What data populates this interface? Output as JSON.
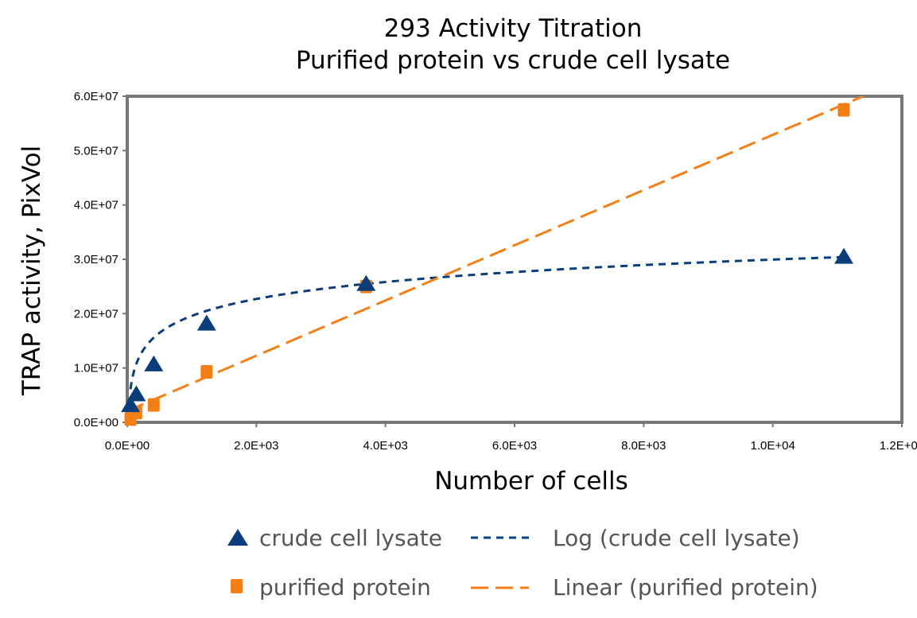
{
  "chart_data": {
    "type": "scatter",
    "title_lines": [
      "293 Activity Titration",
      "Purified protein vs crude cell lysate"
    ],
    "xlabel": "Number of cells",
    "ylabel": "TRAP activity, PixVol",
    "xlim": [
      0,
      12000
    ],
    "ylim": [
      0,
      60000000
    ],
    "x_ticks": [
      0,
      2000,
      4000,
      6000,
      8000,
      10000,
      12000
    ],
    "x_tick_labels": [
      "0.0E+00",
      "2.0E+03",
      "4.0E+03",
      "6.0E+03",
      "8.0E+03",
      "1.0E+04",
      "1.2E+04"
    ],
    "y_ticks": [
      0,
      10000000,
      20000000,
      30000000,
      40000000,
      50000000,
      60000000
    ],
    "y_tick_labels": [
      "0.0E+00",
      "1.0E+07",
      "2.0E+07",
      "3.0E+07",
      "4.0E+07",
      "5.0E+07",
      "6.0E+07"
    ],
    "grid": false,
    "legend_position": "bottom",
    "series": [
      {
        "name": "crude cell lysate",
        "marker": "triangle",
        "color": "#0a3d7a",
        "x": [
          50,
          140,
          410,
          1230,
          3700,
          11100
        ],
        "y": [
          3200000,
          5200000,
          10700000,
          18200000,
          25500000,
          30500000
        ]
      },
      {
        "name": "purified protein",
        "marker": "square",
        "color": "#f57f17",
        "x": [
          50,
          140,
          410,
          1230,
          3700,
          11100
        ],
        "y": [
          600000,
          1800000,
          3200000,
          9300000,
          25000000,
          57500000
        ]
      }
    ],
    "trendlines": [
      {
        "name": "Log (crude cell lysate)",
        "type": "log",
        "color": "#0a3d7a",
        "a": 4500000,
        "b": -11500000,
        "x_range": [
          50,
          11100
        ]
      },
      {
        "name": "Linear (purified protein)",
        "type": "linear",
        "color": "#f57f17",
        "slope": 5080,
        "intercept": 2100000,
        "x_range": [
          0,
          12000
        ]
      }
    ]
  },
  "legend": {
    "items": [
      {
        "label": "crude cell lysate",
        "kind": "marker-triangle",
        "color": "#0a3d7a"
      },
      {
        "label": "Log (crude cell lysate)",
        "kind": "dash-short",
        "color": "#0a3d7a"
      },
      {
        "label": "purified protein",
        "kind": "marker-square",
        "color": "#f57f17"
      },
      {
        "label": "Linear (purified protein)",
        "kind": "dash-long",
        "color": "#f57f17"
      }
    ]
  }
}
